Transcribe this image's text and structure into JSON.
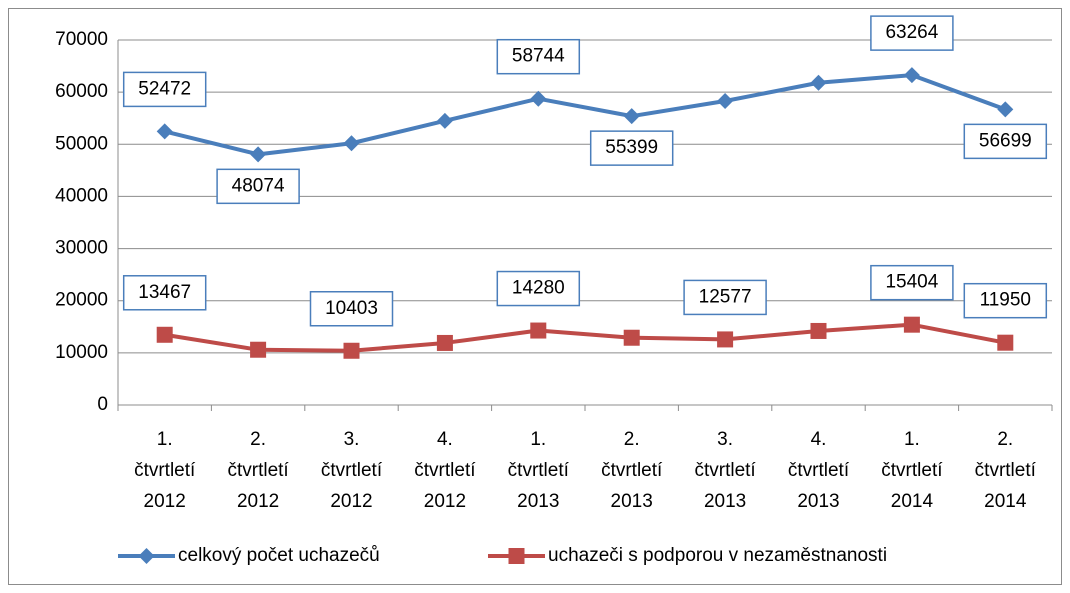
{
  "chart_data": {
    "type": "line",
    "categories": [
      [
        "1.",
        "čtvrtletí",
        "2012"
      ],
      [
        "2.",
        "čtvrtletí",
        "2012"
      ],
      [
        "3.",
        "čtvrtletí",
        "2012"
      ],
      [
        "4.",
        "čtvrtletí",
        "2012"
      ],
      [
        "1.",
        "čtvrtletí",
        "2013"
      ],
      [
        "2.",
        "čtvrtletí",
        "2013"
      ],
      [
        "3.",
        "čtvrtletí",
        "2013"
      ],
      [
        "4.",
        "čtvrtletí",
        "2013"
      ],
      [
        "1.",
        "čtvrtletí",
        "2014"
      ],
      [
        "2.",
        "čtvrtletí",
        "2014"
      ]
    ],
    "series": [
      {
        "name": "celkový počet uchazečů",
        "color": "#4a7ebb",
        "marker": "diamond",
        "values": [
          52472,
          48074,
          50200,
          54500,
          58744,
          55399,
          58300,
          61800,
          63264,
          56699
        ],
        "value_labels": [
          "52472",
          "48074",
          null,
          null,
          "58744",
          "55399",
          null,
          null,
          "63264",
          "56699"
        ]
      },
      {
        "name": "uchazeči s podporou v nezaměstnanosti",
        "color": "#be4b48",
        "marker": "square",
        "values": [
          13467,
          10600,
          10403,
          11900,
          14280,
          12900,
          12577,
          14200,
          15404,
          11950
        ],
        "value_labels": [
          "13467",
          null,
          "10403",
          null,
          "14280",
          null,
          "12577",
          null,
          "15404",
          "11950"
        ]
      }
    ],
    "ylim": [
      0,
      70000
    ],
    "yticks": [
      0,
      10000,
      20000,
      30000,
      40000,
      50000,
      60000,
      70000
    ],
    "grid": true,
    "legend": "bottom"
  }
}
